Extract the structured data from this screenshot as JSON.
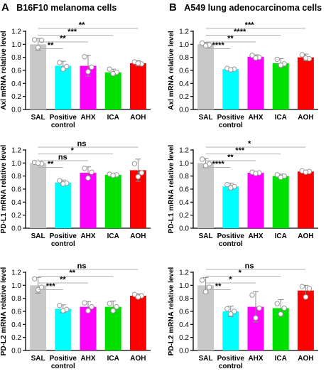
{
  "panels": {
    "A": {
      "letter": "A",
      "title": "B16F10 melanoma cells"
    },
    "B": {
      "letter": "B",
      "title": "A549 lung adenocarcinoma cells"
    }
  },
  "colors": {
    "SAL": "#c8c8c8",
    "Positive control": "#00ffff",
    "AHX": "#ff00ff",
    "ICA": "#00e000",
    "AOH": "#ff0000",
    "bracket": "#b0b0b0"
  },
  "chart_data": [
    {
      "id": "A-axl",
      "panel": "A",
      "type": "bar",
      "categories": [
        "SAL",
        "Positive control",
        "AHX",
        "ICA",
        "AOH"
      ],
      "category_lines": [
        [
          "SAL"
        ],
        [
          "Positive",
          "control"
        ],
        [
          "AHX"
        ],
        [
          "ICA"
        ],
        [
          "AOH"
        ]
      ],
      "values": [
        1.0,
        0.67,
        0.67,
        0.57,
        0.71
      ],
      "errors": [
        0.09,
        0.07,
        0.16,
        0.05,
        0.04
      ],
      "points": [
        [
          1.07,
          1.06,
          0.95
        ],
        [
          0.72,
          0.66,
          0.62
        ],
        [
          0.81,
          0.65,
          0.58
        ],
        [
          0.62,
          0.57,
          0.55
        ],
        [
          0.73,
          0.7,
          0.71
        ]
      ],
      "ylabel": "Axl mRNA relative level",
      "ylim": [
        0,
        1.2
      ],
      "yticks": [
        "0.0",
        "0.2",
        "0.4",
        "0.6",
        "0.8",
        "1.0",
        "1.2"
      ],
      "brackets": [
        {
          "to": 1,
          "label": "**"
        },
        {
          "to": 2,
          "label": "**"
        },
        {
          "to": 3,
          "label": "***"
        },
        {
          "to": 4,
          "label": "**"
        }
      ]
    },
    {
      "id": "B-axl",
      "panel": "B",
      "type": "bar",
      "categories": [
        "SAL",
        "Positive control",
        "AHX",
        "ICA",
        "AOH"
      ],
      "category_lines": [
        [
          "SAL"
        ],
        [
          "Positive",
          "control"
        ],
        [
          "AHX"
        ],
        [
          "ICA"
        ],
        [
          "AOH"
        ]
      ],
      "values": [
        1.0,
        0.62,
        0.81,
        0.71,
        0.8
      ],
      "errors": [
        0.03,
        0.01,
        0.03,
        0.07,
        0.05
      ],
      "points": [
        [
          1.02,
          0.99,
          0.98
        ],
        [
          0.63,
          0.62,
          0.61
        ],
        [
          0.83,
          0.8,
          0.79
        ],
        [
          0.77,
          0.7,
          0.68
        ],
        [
          0.84,
          0.78,
          0.79
        ]
      ],
      "ylabel": "Axl mRNA relative level",
      "ylim": [
        0,
        1.2
      ],
      "yticks": [
        "0.0",
        "0.2",
        "0.4",
        "0.6",
        "0.8",
        "1.0",
        "1.2"
      ],
      "brackets": [
        {
          "to": 1,
          "label": "****"
        },
        {
          "to": 2,
          "label": "**"
        },
        {
          "to": 3,
          "label": "****"
        },
        {
          "to": 4,
          "label": "***"
        }
      ]
    },
    {
      "id": "A-pdl1",
      "panel": "A",
      "type": "bar",
      "categories": [
        "SAL",
        "Positive control",
        "AHX",
        "ICA",
        "AOH"
      ],
      "category_lines": [
        [
          "SAL"
        ],
        [
          "Positive",
          "control"
        ],
        [
          "AHX"
        ],
        [
          "ICA"
        ],
        [
          "AOH"
        ]
      ],
      "values": [
        1.0,
        0.7,
        0.85,
        0.82,
        0.89
      ],
      "errors": [
        0.02,
        0.04,
        0.09,
        0.02,
        0.17
      ],
      "points": [
        [
          1.01,
          0.99,
          1.0
        ],
        [
          0.73,
          0.69,
          0.68
        ],
        [
          0.92,
          0.86,
          0.77
        ],
        [
          0.83,
          0.82,
          0.81
        ],
        [
          0.99,
          0.85,
          0.79
        ]
      ],
      "ylabel": "PD-L1 mRNA relative level",
      "ylim": [
        0,
        1.2
      ],
      "yticks": [
        "0.0",
        "0.2",
        "0.4",
        "0.6",
        "0.8",
        "1.0",
        "1.2"
      ],
      "brackets": [
        {
          "to": 1,
          "label": "**"
        },
        {
          "to": 2,
          "label": "ns"
        },
        {
          "to": 3,
          "label": "*"
        },
        {
          "to": 4,
          "label": "ns"
        }
      ]
    },
    {
      "id": "B-pdl1",
      "panel": "B",
      "type": "bar",
      "categories": [
        "SAL",
        "Positive control",
        "AHX",
        "ICA",
        "AOH"
      ],
      "category_lines": [
        [
          "SAL"
        ],
        [
          "Positive",
          "control"
        ],
        [
          "AHX"
        ],
        [
          "ICA"
        ],
        [
          "AOH"
        ]
      ],
      "values": [
        1.0,
        0.64,
        0.85,
        0.8,
        0.87
      ],
      "errors": [
        0.07,
        0.05,
        0.02,
        0.03,
        0.02
      ],
      "points": [
        [
          1.06,
          0.99,
          0.96
        ],
        [
          0.67,
          0.64,
          0.62
        ],
        [
          0.86,
          0.85,
          0.84
        ],
        [
          0.82,
          0.8,
          0.78
        ],
        [
          0.88,
          0.87,
          0.86
        ]
      ],
      "ylabel": "PD-L1 mRNA relative level",
      "ylim": [
        0,
        1.2
      ],
      "yticks": [
        "0.0",
        "0.2",
        "0.4",
        "0.6",
        "0.8",
        "1.0",
        "1.2"
      ],
      "brackets": [
        {
          "to": 1,
          "label": "****"
        },
        {
          "to": 2,
          "label": "**"
        },
        {
          "to": 3,
          "label": "***"
        },
        {
          "to": 4,
          "label": "*"
        }
      ]
    },
    {
      "id": "A-pdl2",
      "panel": "A",
      "type": "bar",
      "categories": [
        "SAL",
        "Positive control",
        "AHX",
        "ICA",
        "AOH"
      ],
      "category_lines": [
        [
          "SAL"
        ],
        [
          "Positive",
          "control"
        ],
        [
          "AHX"
        ],
        [
          "ICA"
        ],
        [
          "AOH"
        ]
      ],
      "values": [
        1.0,
        0.64,
        0.67,
        0.67,
        0.84
      ],
      "errors": [
        0.12,
        0.06,
        0.08,
        0.09,
        0.03
      ],
      "points": [
        [
          1.1,
          0.97,
          0.93
        ],
        [
          0.69,
          0.63,
          0.61
        ],
        [
          0.73,
          0.67,
          0.61
        ],
        [
          0.72,
          0.67,
          0.61
        ],
        [
          0.86,
          0.84,
          0.82
        ]
      ],
      "ylabel": "PD-L2 mRNA relative level",
      "ylim": [
        0,
        1.2
      ],
      "yticks": [
        "0.0",
        "0.2",
        "0.4",
        "0.6",
        "0.8",
        "1.0",
        "1.2"
      ],
      "brackets": [
        {
          "to": 1,
          "label": "***"
        },
        {
          "to": 2,
          "label": "**"
        },
        {
          "to": 3,
          "label": "**"
        },
        {
          "to": 4,
          "label": "ns"
        }
      ]
    },
    {
      "id": "B-pdl2",
      "panel": "B",
      "type": "bar",
      "categories": [
        "SAL",
        "Positive control",
        "AHX",
        "ICA",
        "AOH"
      ],
      "category_lines": [
        [
          "SAL"
        ],
        [
          "Positive",
          "control"
        ],
        [
          "AHX"
        ],
        [
          "ICA"
        ],
        [
          "AOH"
        ]
      ],
      "values": [
        1.0,
        0.6,
        0.67,
        0.65,
        0.92
      ],
      "errors": [
        0.12,
        0.08,
        0.23,
        0.13,
        0.08
      ],
      "points": [
        [
          1.08,
          0.97,
          0.9
        ],
        [
          0.64,
          0.6,
          0.56
        ],
        [
          0.85,
          0.65,
          0.5
        ],
        [
          0.72,
          0.65,
          0.56
        ],
        [
          0.98,
          0.95,
          0.82
        ]
      ],
      "ylabel": "PD-L2 mRNA relative level",
      "ylim": [
        0,
        1.2
      ],
      "yticks": [
        "0.0",
        "0.2",
        "0.4",
        "0.6",
        "0.8",
        "1.0",
        "1.2"
      ],
      "brackets": [
        {
          "to": 1,
          "label": "**"
        },
        {
          "to": 2,
          "label": "*"
        },
        {
          "to": 3,
          "label": "*"
        },
        {
          "to": 4,
          "label": "ns"
        }
      ]
    }
  ]
}
